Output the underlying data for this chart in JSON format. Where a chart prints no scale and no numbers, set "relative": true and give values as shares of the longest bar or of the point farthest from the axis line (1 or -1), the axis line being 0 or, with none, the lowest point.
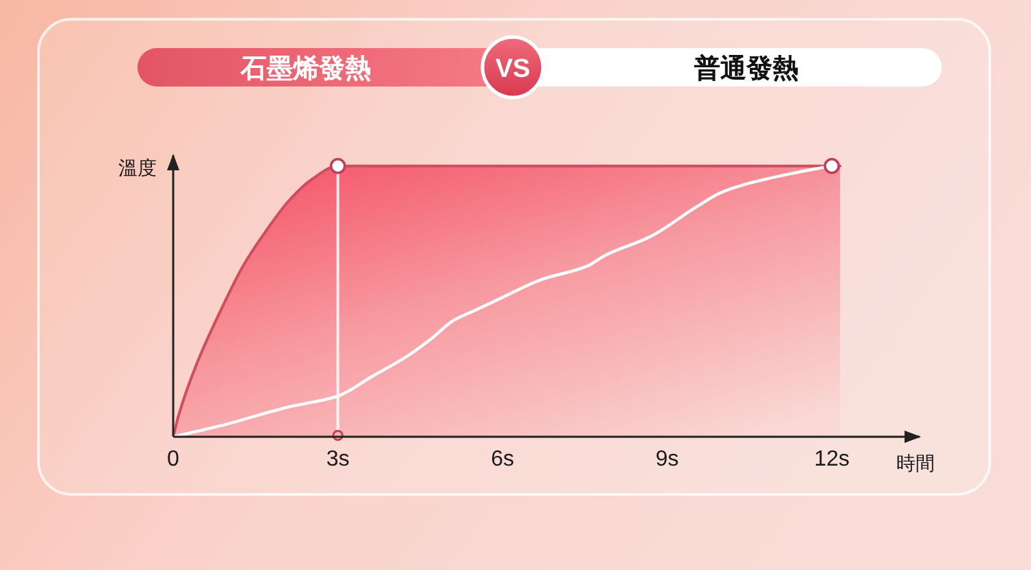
{
  "chart_data": {
    "type": "line",
    "relative": true,
    "xlabel": "時間",
    "ylabel": "溫度",
    "legend": "top",
    "annotations": [
      "VS"
    ],
    "xlim": [
      0,
      13.6
    ],
    "xticks": [
      0,
      {
        "value": 3,
        "label": "3s"
      },
      {
        "value": 6,
        "label": "6s"
      },
      {
        "value": 9,
        "label": "9s"
      },
      {
        "value": 12,
        "label": "12s"
      }
    ],
    "ref_lines": [
      {
        "axis": "x",
        "value": 3,
        "color": "#ffffff"
      }
    ],
    "series": [
      {
        "name": "石墨烯發熱",
        "type": "area",
        "color": "#f45b6e",
        "x": [
          0,
          0.1,
          0.43,
          0.85,
          1.27,
          1.69,
          2.1,
          2.52,
          3,
          12.15
        ],
        "values": [
          0,
          0.08,
          0.27,
          0.46,
          0.63,
          0.76,
          0.87,
          0.95,
          1,
          1
        ]
      },
      {
        "name": "普通發熱",
        "color": "#ffffff",
        "x": [
          0,
          0.85,
          2.1,
          3,
          3.6,
          4.28,
          4.69,
          5.11,
          5.53,
          5.95,
          6.7,
          7.54,
          7.87,
          8.7,
          9.54,
          9.96,
          10.38,
          11.21,
          11.71,
          12
        ],
        "values": [
          0,
          0.04,
          0.11,
          0.15,
          0.22,
          0.3,
          0.36,
          0.43,
          0.47,
          0.51,
          0.58,
          0.63,
          0.67,
          0.74,
          0.85,
          0.9,
          0.93,
          0.97,
          0.99,
          1
        ]
      },
      {
        "type": "scatter",
        "color": "#ffffff",
        "x": [
          3,
          12
        ],
        "values": [
          1,
          1
        ]
      }
    ]
  }
}
